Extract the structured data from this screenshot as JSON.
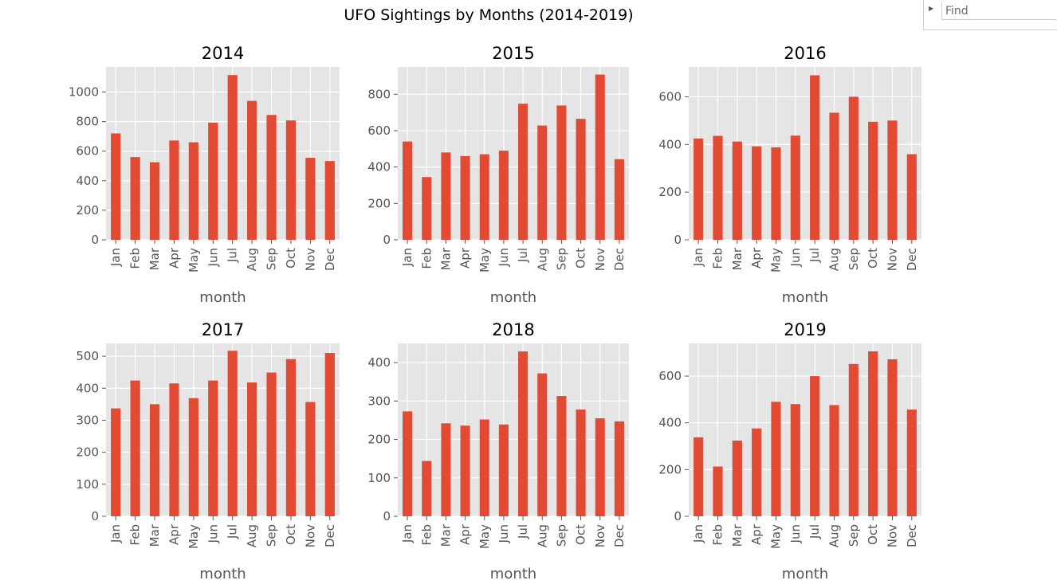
{
  "suptitle": "UFO Sightings by Months (2014-2019)",
  "find": {
    "placeholder": "Find"
  },
  "colors": {
    "bar": "#e24a33",
    "panel": "#e5e5e5",
    "grid": "#ffffff",
    "tick_text": "#555555",
    "title_text": "#000000"
  },
  "chart_data": [
    {
      "type": "bar",
      "title": "2014",
      "xlabel": "month",
      "ylabel": "",
      "categories": [
        "Jan",
        "Feb",
        "Mar",
        "Apr",
        "May",
        "Jun",
        "Jul",
        "Aug",
        "Sep",
        "Oct",
        "Nov",
        "Dec"
      ],
      "values": [
        720,
        560,
        525,
        672,
        660,
        793,
        1115,
        940,
        845,
        808,
        555,
        533
      ],
      "ylim": [
        0,
        1170
      ],
      "yticks": [
        0,
        200,
        400,
        600,
        800,
        1000
      ],
      "grid": true
    },
    {
      "type": "bar",
      "title": "2015",
      "xlabel": "month",
      "ylabel": "",
      "categories": [
        "Jan",
        "Feb",
        "Mar",
        "Apr",
        "May",
        "Jun",
        "Jul",
        "Aug",
        "Sep",
        "Oct",
        "Nov",
        "Dec"
      ],
      "values": [
        540,
        345,
        480,
        460,
        470,
        490,
        748,
        628,
        738,
        665,
        908,
        443
      ],
      "ylim": [
        0,
        950
      ],
      "yticks": [
        0,
        200,
        400,
        600,
        800
      ],
      "grid": true
    },
    {
      "type": "bar",
      "title": "2016",
      "xlabel": "month",
      "ylabel": "",
      "categories": [
        "Jan",
        "Feb",
        "Mar",
        "Apr",
        "May",
        "Jun",
        "Jul",
        "Aug",
        "Sep",
        "Oct",
        "Nov",
        "Dec"
      ],
      "values": [
        425,
        436,
        412,
        392,
        388,
        437,
        690,
        533,
        600,
        495,
        500,
        359
      ],
      "ylim": [
        0,
        725
      ],
      "yticks": [
        0,
        200,
        400,
        600
      ],
      "grid": true
    },
    {
      "type": "bar",
      "title": "2017",
      "xlabel": "month",
      "ylabel": "",
      "categories": [
        "Jan",
        "Feb",
        "Mar",
        "Apr",
        "May",
        "Jun",
        "Jul",
        "Aug",
        "Sep",
        "Oct",
        "Nov",
        "Dec"
      ],
      "values": [
        337,
        424,
        350,
        415,
        369,
        424,
        517,
        418,
        449,
        491,
        357,
        510
      ],
      "ylim": [
        0,
        540
      ],
      "yticks": [
        0,
        100,
        200,
        300,
        400,
        500
      ],
      "grid": true
    },
    {
      "type": "bar",
      "title": "2018",
      "xlabel": "month",
      "ylabel": "",
      "categories": [
        "Jan",
        "Feb",
        "Mar",
        "Apr",
        "May",
        "Jun",
        "Jul",
        "Aug",
        "Sep",
        "Oct",
        "Nov",
        "Dec"
      ],
      "values": [
        273,
        144,
        242,
        236,
        252,
        239,
        429,
        372,
        313,
        278,
        255,
        247
      ],
      "ylim": [
        0,
        450
      ],
      "yticks": [
        0,
        100,
        200,
        300,
        400
      ],
      "grid": true
    },
    {
      "type": "bar",
      "title": "2019",
      "xlabel": "month",
      "ylabel": "",
      "categories": [
        "Jan",
        "Feb",
        "Mar",
        "Apr",
        "May",
        "Jun",
        "Jul",
        "Aug",
        "Sep",
        "Oct",
        "Nov",
        "Dec"
      ],
      "values": [
        338,
        213,
        324,
        376,
        490,
        480,
        600,
        476,
        652,
        706,
        672,
        457
      ],
      "ylim": [
        0,
        740
      ],
      "yticks": [
        0,
        200,
        400,
        600
      ],
      "grid": true
    }
  ]
}
